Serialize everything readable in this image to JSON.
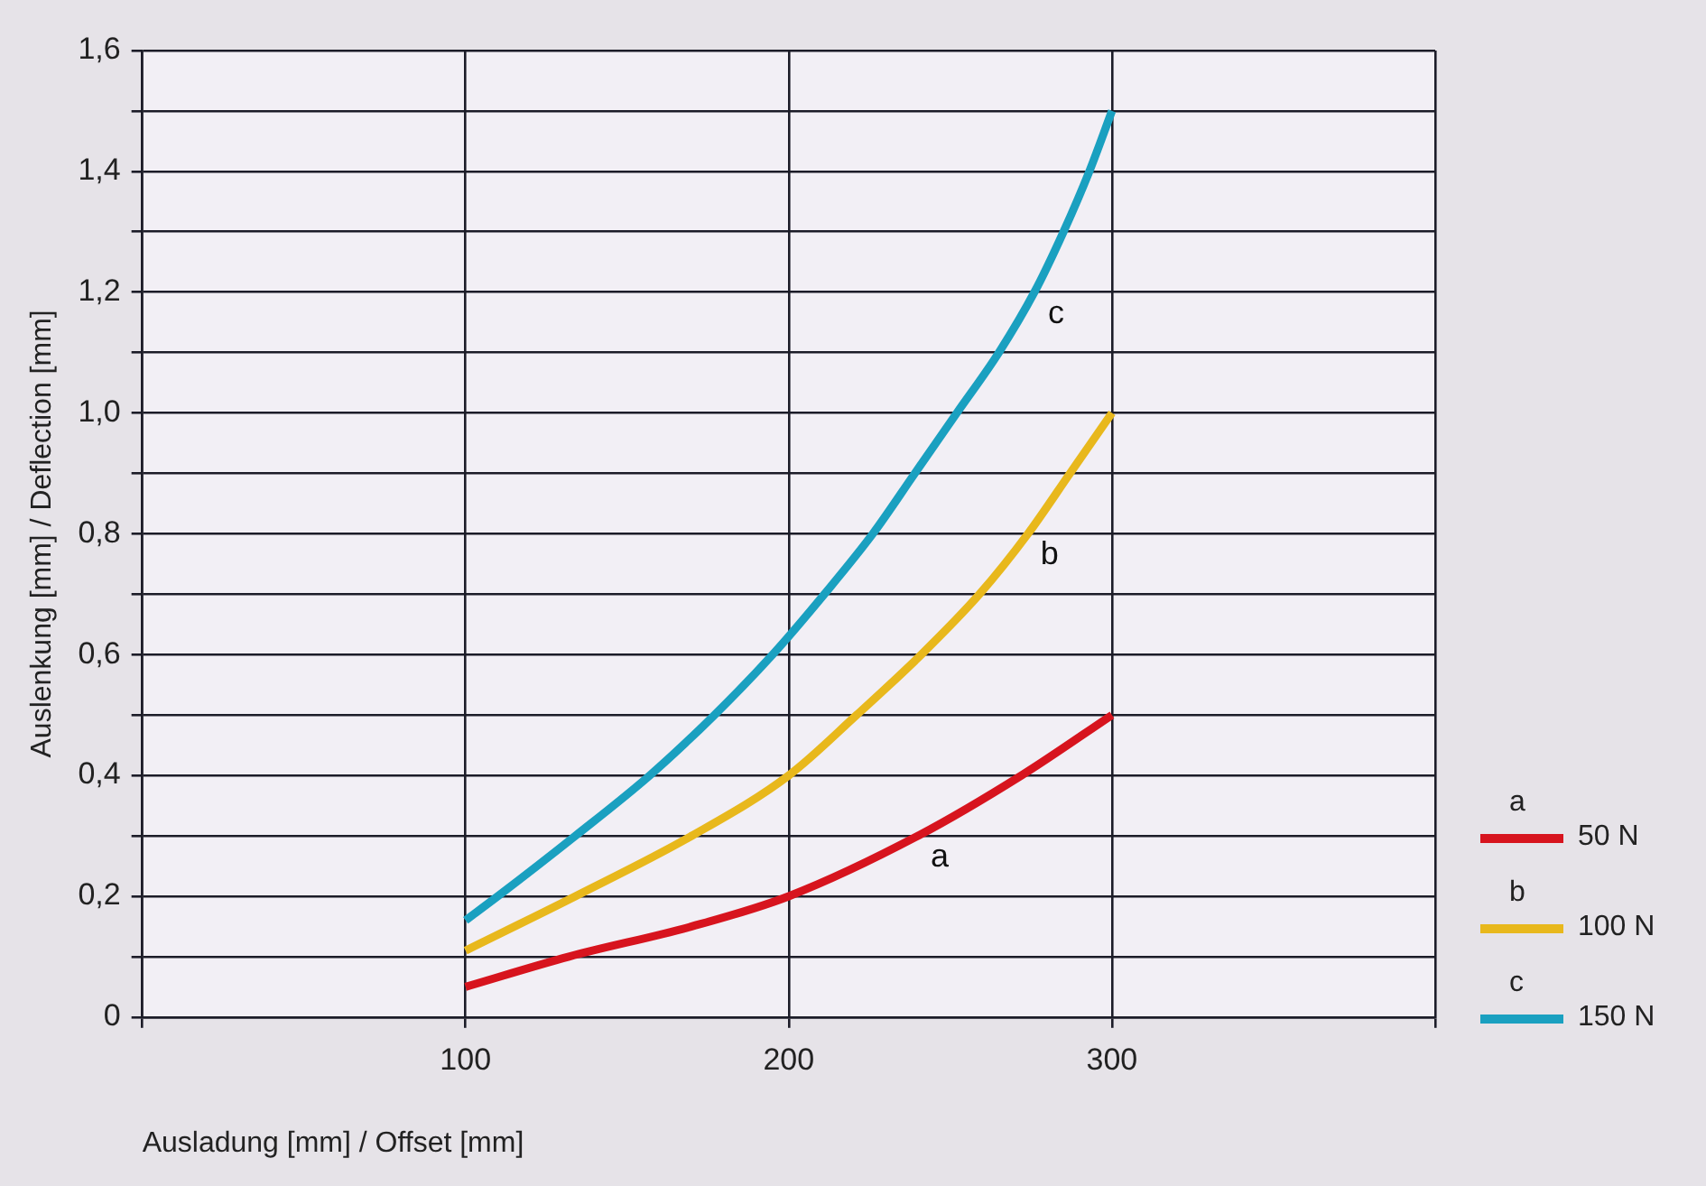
{
  "chart_data": {
    "type": "line",
    "xlabel": "Ausladung [mm] / Offset [mm]",
    "ylabel": "Auslenkung [mm] / Deflection [mm]",
    "xlim": [
      0,
      400
    ],
    "xticks": [
      {
        "value": 0,
        "label": null
      },
      100,
      200,
      300,
      {
        "value": 400,
        "label": null
      }
    ],
    "ylim": [
      0,
      1.6
    ],
    "yticks": [
      {
        "value": 0,
        "label": "0"
      },
      {
        "value": 0.1,
        "label": null
      },
      {
        "value": 0.2,
        "label": "0,2"
      },
      {
        "value": 0.3,
        "label": null
      },
      {
        "value": 0.4,
        "label": "0,4"
      },
      {
        "value": 0.5,
        "label": null
      },
      {
        "value": 0.6,
        "label": "0,6"
      },
      {
        "value": 0.7,
        "label": null
      },
      {
        "value": 0.8,
        "label": "0,8"
      },
      {
        "value": 0.9,
        "label": null
      },
      {
        "value": 1.0,
        "label": "1,0"
      },
      {
        "value": 1.1,
        "label": null
      },
      {
        "value": 1.2,
        "label": "1,2"
      },
      {
        "value": 1.3,
        "label": null
      },
      {
        "value": 1.4,
        "label": "1,4"
      },
      {
        "value": 1.5,
        "label": null
      },
      {
        "value": 1.6,
        "label": "1,6"
      }
    ],
    "grid": true,
    "legend": "right",
    "marker": "none",
    "line_style": "solid",
    "series": [
      {
        "name": "50 N",
        "color": "#d7141e",
        "x": [
          100,
          132,
          170,
          200,
          240,
          272,
          300
        ],
        "values": [
          0.05,
          0.1,
          0.15,
          0.2,
          0.3,
          0.4,
          0.5
        ]
      },
      {
        "name": "100 N",
        "color": "#e8b81c",
        "x": [
          100,
          134,
          170,
          200,
          221,
          241,
          259,
          274,
          287,
          300
        ],
        "values": [
          0.11,
          0.2,
          0.3,
          0.4,
          0.5,
          0.6,
          0.7,
          0.8,
          0.9,
          1.0
        ]
      },
      {
        "name": "150 N",
        "color": "#1aa0c0",
        "x": [
          100,
          110,
          134,
          157,
          177,
          195,
          211,
          226,
          239,
          252,
          265,
          276,
          285,
          293,
          300
        ],
        "values": [
          0.16,
          0.2,
          0.3,
          0.4,
          0.5,
          0.6,
          0.7,
          0.8,
          0.9,
          1.0,
          1.1,
          1.2,
          1.3,
          1.4,
          1.5
        ]
      }
    ],
    "annotations": [
      {
        "text": "a",
        "x": 240,
        "y": 0.3
      },
      {
        "text": "b",
        "x": 274,
        "y": 0.8
      },
      {
        "text": "c",
        "x": 276,
        "y": 1.2
      }
    ]
  }
}
